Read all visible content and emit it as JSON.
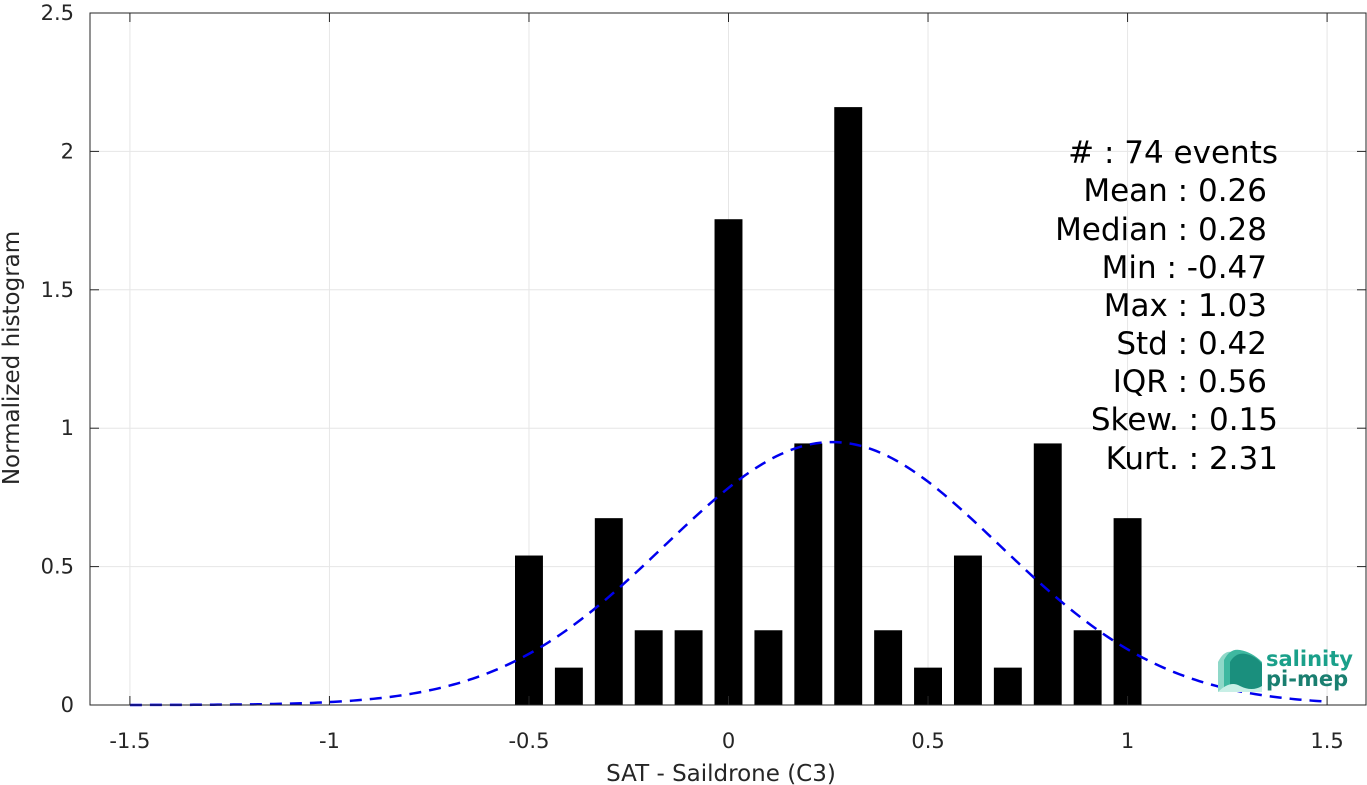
{
  "chart_data": {
    "type": "bar",
    "xlabel": "SAT - Saildrone (C3)",
    "ylabel": "Normalized histogram",
    "xlim": [
      -1.6,
      1.6
    ],
    "ylim": [
      0,
      2.5
    ],
    "grid": true,
    "x_ticks": [
      -1.5,
      -1,
      -0.5,
      0,
      0.5,
      1,
      1.5
    ],
    "x_tick_labels": [
      "-1.5",
      "-1",
      "-0.5",
      "0",
      "0.5",
      "1",
      "1.5"
    ],
    "y_ticks": [
      0,
      0.5,
      1,
      1.5,
      2,
      2.5
    ],
    "y_tick_labels": [
      "0",
      "0.5",
      "1",
      "1.5",
      "2",
      "2.5"
    ],
    "bar_width": 0.07,
    "bar_color": "#000000",
    "bins": [
      {
        "x": -0.5,
        "value": 0.54
      },
      {
        "x": -0.4,
        "value": 0.135
      },
      {
        "x": -0.3,
        "value": 0.675
      },
      {
        "x": -0.2,
        "value": 0.27
      },
      {
        "x": -0.1,
        "value": 0.27
      },
      {
        "x": 0.0,
        "value": 1.755
      },
      {
        "x": 0.1,
        "value": 0.27
      },
      {
        "x": 0.2,
        "value": 0.945
      },
      {
        "x": 0.3,
        "value": 2.16
      },
      {
        "x": 0.4,
        "value": 0.27
      },
      {
        "x": 0.5,
        "value": 0.135
      },
      {
        "x": 0.6,
        "value": 0.54
      },
      {
        "x": 0.7,
        "value": 0.135
      },
      {
        "x": 0.8,
        "value": 0.945
      },
      {
        "x": 0.9,
        "value": 0.27
      },
      {
        "x": 1.0,
        "value": 0.675
      }
    ],
    "fit_curve": {
      "style": "dashed",
      "color": "#0000ee",
      "mean": 0.26,
      "std": 0.42,
      "x_range": [
        -1.5,
        1.5
      ]
    }
  },
  "stats": {
    "lines": [
      "#  : 74 events",
      "Mean : 0.26",
      "Median : 0.28",
      "Min : -0.47",
      "Max : 1.03",
      "Std : 0.42",
      "IQR : 0.56",
      "Skew. : 0.15",
      "Kurt. : 2.31"
    ]
  },
  "logo": {
    "line1": "salinity",
    "line2": "pi-mep",
    "color": "#1aa08a"
  }
}
